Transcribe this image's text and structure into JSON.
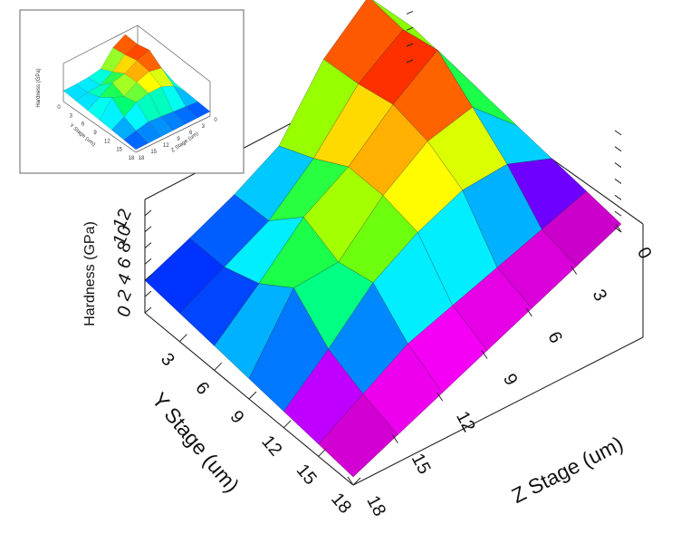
{
  "chart_data": [
    {
      "type": "surface",
      "title": "",
      "xlabel": "Y Stage (um)",
      "ylabel": "Z Stage (um)",
      "zlabel": "Hardness (GPa)",
      "x_ticks": [
        "3",
        "6",
        "9",
        "12",
        "15",
        "18"
      ],
      "y_ticks": [
        "0",
        "3",
        "6",
        "9",
        "12",
        "15",
        "18"
      ],
      "z_ticks": [
        "0",
        "2",
        "4",
        "6",
        "8",
        "10",
        "12"
      ],
      "xlim": [
        0,
        18
      ],
      "ylim": [
        0,
        18
      ],
      "zlim": [
        0,
        14
      ],
      "grid": false,
      "colormap": [
        "#800080",
        "#c000c0",
        "#ff00ff",
        "#0000ff",
        "#00a0ff",
        "#00ffff",
        "#00ff60",
        "#80ff00",
        "#ffff00",
        "#ffb000",
        "#ff6000",
        "#ff0000",
        "#ffffff"
      ],
      "x": [
        0,
        3,
        6,
        9,
        12,
        15,
        18
      ],
      "y": [
        0,
        3,
        6,
        9,
        12,
        15,
        18
      ],
      "z": [
        [
          4.0,
          4.0,
          4.2,
          5.0,
          10.5,
          13.0,
          4.0
        ],
        [
          3.5,
          4.0,
          4.5,
          7.0,
          11.0,
          12.5,
          3.5
        ],
        [
          3.0,
          5.5,
          8.5,
          9.5,
          12.0,
          13.5,
          3.0
        ],
        [
          2.5,
          8.5,
          6.5,
          9.5,
          11.0,
          10.0,
          2.5
        ],
        [
          2.0,
          4.5,
          7.5,
          8.5,
          8.5,
          6.5,
          2.0
        ],
        [
          1.5,
          2.5,
          3.5,
          3.0,
          2.5,
          2.0,
          1.5
        ],
        [
          1.0,
          1.0,
          1.0,
          1.0,
          1.0,
          1.0,
          1.0
        ]
      ]
    },
    {
      "type": "surface",
      "title": "",
      "xlabel": "Y Stage (um)",
      "ylabel": "Z Stage (um)",
      "zlabel": "Hardness (GPa)",
      "x_ticks": [
        "0",
        "3",
        "6",
        "9",
        "12",
        "15",
        "18"
      ],
      "y_ticks": [
        "0",
        "3",
        "6",
        "9",
        "12",
        "15",
        "18"
      ],
      "colormap": [
        "#0000ff",
        "#00a0ff",
        "#00ffff",
        "#00ff60",
        "#ffff00",
        "#ff6000",
        "#ff0000"
      ]
    }
  ]
}
